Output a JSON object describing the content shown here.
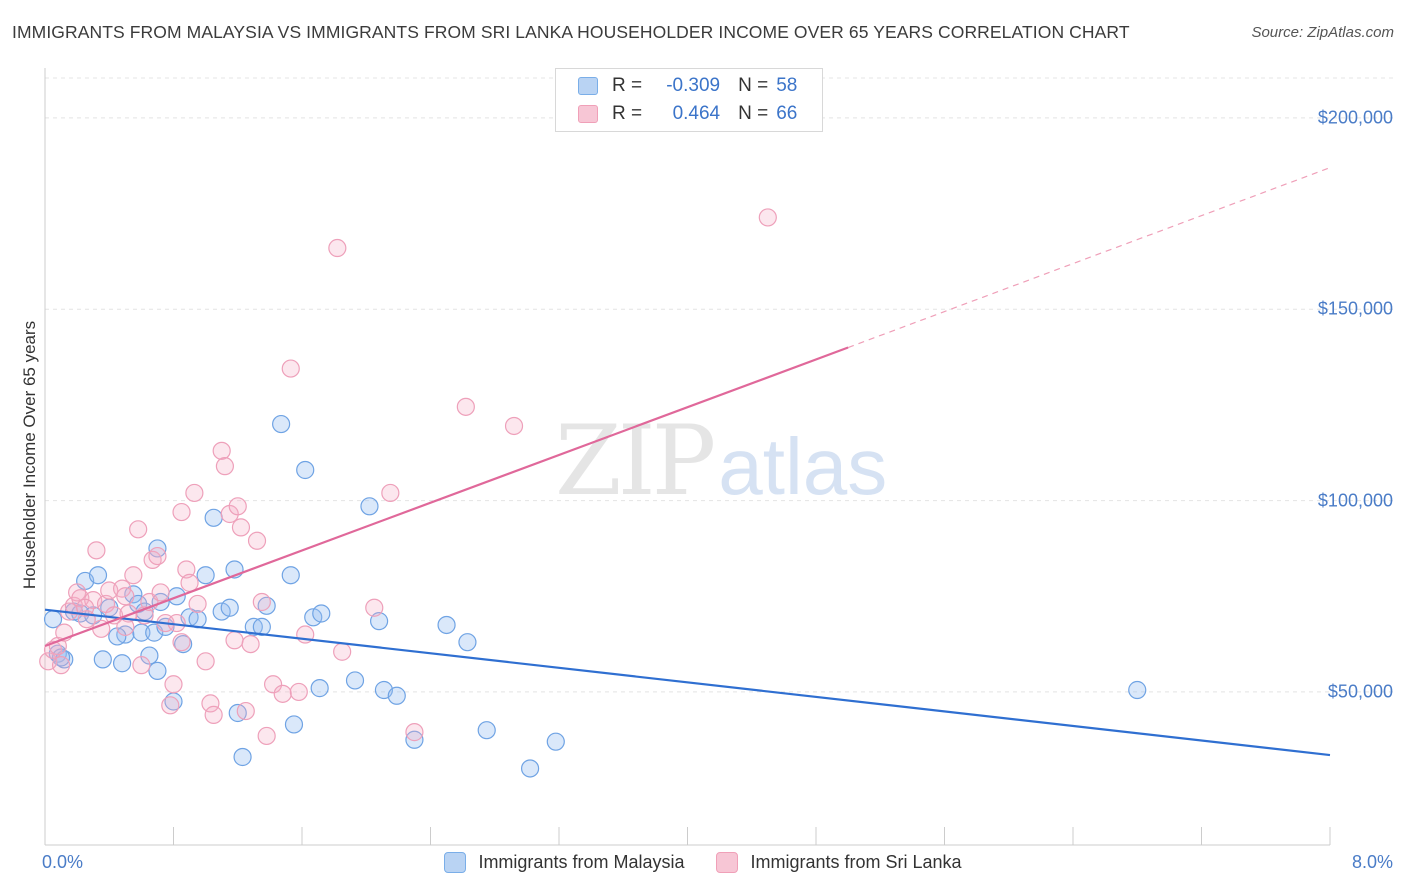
{
  "title": "IMMIGRANTS FROM MALAYSIA VS IMMIGRANTS FROM SRI LANKA HOUSEHOLDER INCOME OVER 65 YEARS CORRELATION CHART",
  "source": "Source: ZipAtlas.com",
  "watermark": {
    "zip": "ZIP",
    "atlas": "atlas"
  },
  "stats": [
    {
      "r_label": "R =",
      "r_value": "-0.309",
      "n_label": "N =",
      "n_value": "58",
      "color": "#7aaee8",
      "fill": "#b9d3f3"
    },
    {
      "r_label": "R =",
      "r_value": "0.464",
      "n_label": "N =",
      "n_value": "66",
      "color": "#f0a0b8",
      "fill": "#f7c6d5"
    }
  ],
  "legend": [
    {
      "label": "Immigrants from Malaysia",
      "color": "#7aaee8",
      "fill": "#b9d3f3"
    },
    {
      "label": "Immigrants from Sri Lanka",
      "color": "#f0a0b8",
      "fill": "#f7c6d5"
    }
  ],
  "chart_data": {
    "type": "scatter",
    "title": "IMMIGRANTS FROM MALAYSIA VS IMMIGRANTS FROM SRI LANKA HOUSEHOLDER INCOME OVER 65 YEARS CORRELATION CHART",
    "xlabel": "",
    "ylabel": "Householder Income Over 65 years",
    "xlim": [
      0.0,
      8.0
    ],
    "ylim": [
      10000,
      212000
    ],
    "x_tick_labels": [
      "0.0%",
      "8.0%"
    ],
    "y_ticks": [
      50000,
      100000,
      150000,
      200000
    ],
    "y_tick_labels": [
      "$50,000",
      "$100,000",
      "$150,000",
      "$200,000"
    ],
    "grid": true,
    "legend_position": "bottom",
    "series": [
      {
        "name": "Immigrants from Malaysia",
        "color": "#5b93dc",
        "trend": {
          "x": [
            0.0,
            8.0
          ],
          "y": [
            71500,
            33500
          ],
          "style": "solid"
        },
        "points": [
          [
            0.05,
            69000
          ],
          [
            0.08,
            60000
          ],
          [
            0.12,
            58500
          ],
          [
            0.18,
            71000
          ],
          [
            0.22,
            70500
          ],
          [
            0.25,
            79000
          ],
          [
            0.33,
            80500
          ],
          [
            0.36,
            58500
          ],
          [
            0.4,
            72000
          ],
          [
            0.48,
            57500
          ],
          [
            0.5,
            65000
          ],
          [
            0.55,
            75500
          ],
          [
            0.58,
            73000
          ],
          [
            0.6,
            65500
          ],
          [
            0.62,
            71000
          ],
          [
            0.65,
            59500
          ],
          [
            0.68,
            65500
          ],
          [
            0.7,
            55500
          ],
          [
            0.72,
            73500
          ],
          [
            0.7,
            87500
          ],
          [
            0.75,
            67000
          ],
          [
            0.8,
            47500
          ],
          [
            0.82,
            75000
          ],
          [
            0.86,
            62500
          ],
          [
            0.9,
            69500
          ],
          [
            0.95,
            69000
          ],
          [
            1.0,
            80500
          ],
          [
            1.05,
            95500
          ],
          [
            1.1,
            71000
          ],
          [
            1.15,
            72000
          ],
          [
            1.18,
            82000
          ],
          [
            1.2,
            44500
          ],
          [
            1.23,
            33000
          ],
          [
            1.3,
            67000
          ],
          [
            1.35,
            67000
          ],
          [
            1.38,
            72500
          ],
          [
            1.47,
            120000
          ],
          [
            1.53,
            80500
          ],
          [
            1.55,
            41500
          ],
          [
            1.62,
            108000
          ],
          [
            1.67,
            69500
          ],
          [
            1.72,
            70500
          ],
          [
            1.71,
            51000
          ],
          [
            1.93,
            53000
          ],
          [
            2.02,
            98500
          ],
          [
            2.08,
            68500
          ],
          [
            2.11,
            50500
          ],
          [
            2.19,
            49000
          ],
          [
            2.3,
            37500
          ],
          [
            2.5,
            67500
          ],
          [
            2.63,
            63000
          ],
          [
            2.75,
            40000
          ],
          [
            3.02,
            30000
          ],
          [
            3.18,
            37000
          ],
          [
            6.8,
            50500
          ],
          [
            0.1,
            59000
          ],
          [
            0.3,
            70000
          ],
          [
            0.45,
            64500
          ]
        ]
      },
      {
        "name": "Immigrants from Sri Lanka",
        "color": "#e66b97",
        "trend": {
          "x": [
            0.0,
            5.0
          ],
          "y": [
            62000,
            140000
          ],
          "style": "solid",
          "extended": {
            "x": [
              5.0,
              8.0
            ],
            "y": [
              140000,
              187000
            ],
            "style": "dashed"
          }
        },
        "points": [
          [
            0.02,
            58000
          ],
          [
            0.05,
            61000
          ],
          [
            0.08,
            62000
          ],
          [
            0.1,
            57000
          ],
          [
            0.12,
            65500
          ],
          [
            0.15,
            71000
          ],
          [
            0.18,
            72500
          ],
          [
            0.2,
            76000
          ],
          [
            0.22,
            74500
          ],
          [
            0.26,
            69000
          ],
          [
            0.3,
            74000
          ],
          [
            0.32,
            87000
          ],
          [
            0.35,
            66500
          ],
          [
            0.38,
            73000
          ],
          [
            0.4,
            76500
          ],
          [
            0.43,
            70000
          ],
          [
            0.48,
            77000
          ],
          [
            0.5,
            75000
          ],
          [
            0.52,
            70500
          ],
          [
            0.55,
            80500
          ],
          [
            0.58,
            92500
          ],
          [
            0.6,
            57000
          ],
          [
            0.62,
            70000
          ],
          [
            0.65,
            73500
          ],
          [
            0.67,
            84500
          ],
          [
            0.7,
            85500
          ],
          [
            0.72,
            76000
          ],
          [
            0.75,
            68000
          ],
          [
            0.78,
            46500
          ],
          [
            0.8,
            52000
          ],
          [
            0.82,
            68000
          ],
          [
            0.85,
            97000
          ],
          [
            0.88,
            82000
          ],
          [
            0.9,
            78500
          ],
          [
            0.93,
            102000
          ],
          [
            0.95,
            73000
          ],
          [
            1.0,
            58000
          ],
          [
            1.03,
            47000
          ],
          [
            1.05,
            44000
          ],
          [
            1.1,
            113000
          ],
          [
            1.12,
            109000
          ],
          [
            1.15,
            96500
          ],
          [
            1.18,
            63500
          ],
          [
            1.2,
            98500
          ],
          [
            1.22,
            93000
          ],
          [
            1.25,
            45000
          ],
          [
            1.28,
            62500
          ],
          [
            1.32,
            89500
          ],
          [
            1.35,
            73500
          ],
          [
            1.38,
            38500
          ],
          [
            1.42,
            52000
          ],
          [
            1.48,
            49500
          ],
          [
            1.53,
            134500
          ],
          [
            1.58,
            50000
          ],
          [
            1.62,
            65000
          ],
          [
            1.85,
            60500
          ],
          [
            1.82,
            166000
          ],
          [
            2.05,
            72000
          ],
          [
            2.15,
            102000
          ],
          [
            2.3,
            39500
          ],
          [
            2.62,
            124500
          ],
          [
            2.92,
            119500
          ],
          [
            4.5,
            174000
          ],
          [
            0.25,
            72000
          ],
          [
            0.5,
            67000
          ],
          [
            0.85,
            63000
          ]
        ]
      }
    ]
  }
}
